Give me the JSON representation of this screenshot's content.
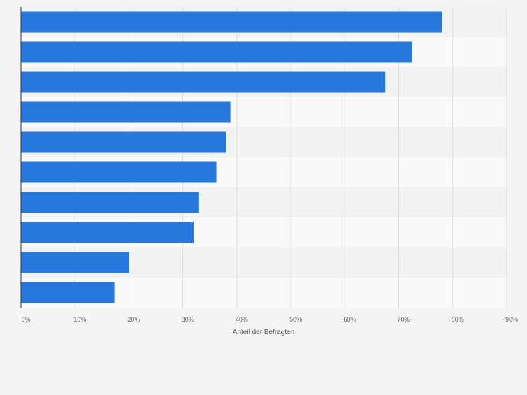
{
  "chart_data": {
    "type": "bar",
    "orientation": "horizontal",
    "categories": [
      "",
      "",
      "",
      "",
      "",
      "",
      "",
      "",
      "",
      ""
    ],
    "values": [
      78,
      72.5,
      67.5,
      38.8,
      38,
      36.2,
      33,
      32,
      20,
      17.3
    ],
    "xlabel": "Anteil der Befragten",
    "ylabel": "",
    "xlim": [
      0,
      90
    ],
    "xticks": [
      0,
      10,
      20,
      30,
      40,
      50,
      60,
      70,
      80,
      90
    ],
    "tick_format": "{v}%",
    "grid": true,
    "colors": {
      "bar": "#2878dc",
      "band_light": "#f9f9f9",
      "band_dark": "#f2f2f2",
      "grid": "#dcdcdc",
      "tick_text": "#666666",
      "axis": "#333333"
    }
  }
}
